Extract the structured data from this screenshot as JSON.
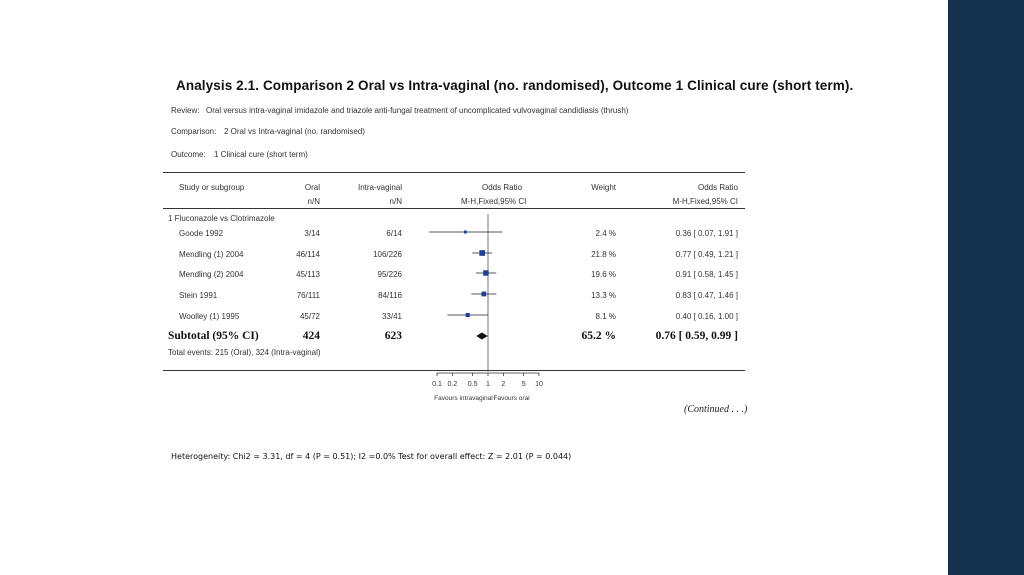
{
  "figure": {
    "title": "Analysis 2.1.   Comparison 2 Oral vs Intra-vaginal (no. randomised), Outcome 1 Clinical cure (short term).",
    "review_label": "Review:",
    "review_value": "Oral versus intra-vaginal imidazole and triazole anti-fungal treatment of uncomplicated vulvovaginal candidiasis (thrush)",
    "comparison_label": "Comparison:",
    "comparison_value": "2 Oral vs Intra-vaginal (no. randomised)",
    "outcome_label": "Outcome:",
    "outcome_value": "1 Clinical cure (short term)",
    "continued": "(Continued . . .)"
  },
  "columns": {
    "study": "Study or subgroup",
    "oral": "Oral",
    "oral_sub": "n/N",
    "intra": "Intra-vaginal",
    "intra_sub": "n/N",
    "or": "Odds Ratio",
    "or_sub": "M-H,Fixed,95% CI",
    "weight": "Weight",
    "or2": "Odds Ratio",
    "or2_sub": "M-H,Fixed,95% CI"
  },
  "subgroup_label": "1 Fluconazole vs Clotrimazole",
  "total_events": "Total events: 215 (Oral), 324 (Intra-vaginal)",
  "heterogeneity": "Heterogeneity: Chi2 = 3.31, df = 4 (P = 0.51); I2 =0.0% Test for overall effect: Z = 2.01 (P = 0.044)",
  "chart_data": {
    "type": "forest",
    "x_scale": "log",
    "xlim": [
      0.1,
      10
    ],
    "x_ticks": [
      0.1,
      0.2,
      0.5,
      1,
      2,
      5,
      10
    ],
    "x_tick_labels": [
      "0.1",
      "0.2",
      "0.5",
      "1",
      "2",
      "5",
      "10"
    ],
    "left_label": "Favours intravaginal",
    "right_label": "Favours oral",
    "studies": [
      {
        "name": "Goode 1992",
        "oral": "3/14",
        "intra": "6/14",
        "weight": "2.4 %",
        "or_text": "0.36 [ 0.07, 1.91 ]",
        "or": 0.36,
        "lo": 0.07,
        "hi": 1.91,
        "w": 2.4
      },
      {
        "name": "Mendling (1) 2004",
        "oral": "46/114",
        "intra": "106/226",
        "weight": "21.8 %",
        "or_text": "0.77 [ 0.49, 1.21 ]",
        "or": 0.77,
        "lo": 0.49,
        "hi": 1.21,
        "w": 21.8
      },
      {
        "name": "Mendling (2) 2004",
        "oral": "45/113",
        "intra": "95/226",
        "weight": "19.6 %",
        "or_text": "0.91 [ 0.58, 1.45 ]",
        "or": 0.91,
        "lo": 0.58,
        "hi": 1.45,
        "w": 19.6
      },
      {
        "name": "Stein 1991",
        "oral": "76/111",
        "intra": "84/116",
        "weight": "13.3 %",
        "or_text": "0.83 [ 0.47, 1.46 ]",
        "or": 0.83,
        "lo": 0.47,
        "hi": 1.46,
        "w": 13.3
      },
      {
        "name": "Woolley (1) 1995",
        "oral": "45/72",
        "intra": "33/41",
        "weight": "8.1 %",
        "or_text": "0.40 [ 0.16, 1.00 ]",
        "or": 0.4,
        "lo": 0.16,
        "hi": 1.0,
        "w": 8.1
      }
    ],
    "subtotal": {
      "name": "Subtotal (95% CI)",
      "oral": "424",
      "intra": "623",
      "weight": "65.2 %",
      "or_text": "0.76 [ 0.59, 0.99 ]",
      "or": 0.76,
      "lo": 0.59,
      "hi": 0.99
    },
    "colors": {
      "marker": "#1f3f9a",
      "line": "#222222"
    }
  }
}
